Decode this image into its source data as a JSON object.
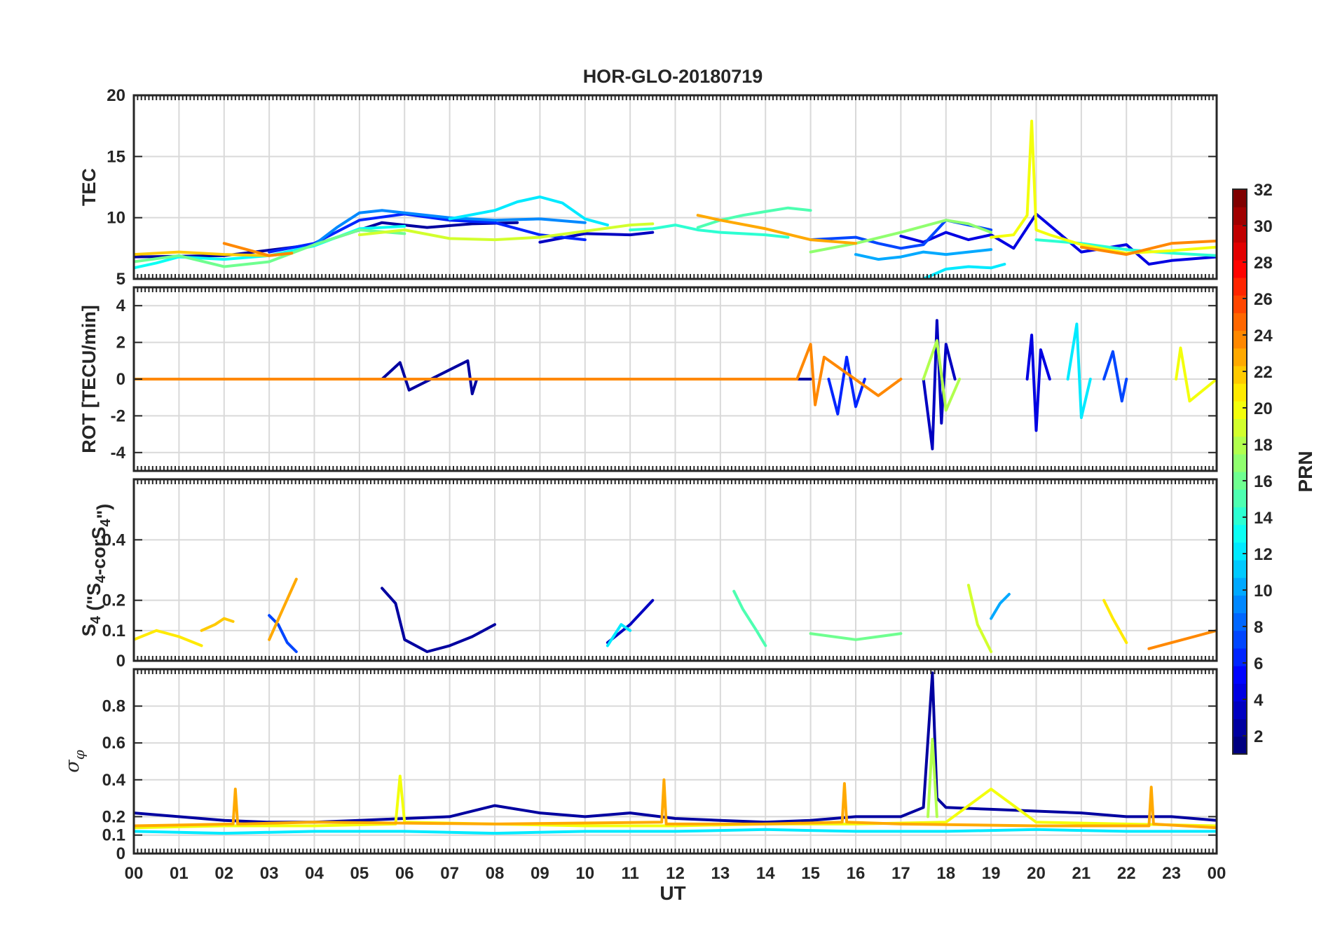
{
  "figure_title": "HOR-GLO-20180719",
  "chart_data": [
    {
      "type": "line",
      "panel": "tec",
      "title": "HOR-GLO-20180719",
      "ylabel": "TEC",
      "xlabel": "",
      "ylim": [
        5,
        20
      ],
      "yticks": [
        5,
        10,
        15,
        20
      ],
      "yticklabels": [
        "5",
        "10",
        "15",
        "20"
      ],
      "series": [
        {
          "name": "PRN 2",
          "prn": 2,
          "x": [
            0,
            2,
            4,
            5.5,
            6.5,
            7.5,
            8.5
          ],
          "values": [
            6.8,
            6.9,
            7.8,
            9.6,
            9.2,
            9.5,
            9.6
          ]
        },
        {
          "name": "PRN 3",
          "prn": 3,
          "x": [
            9,
            10,
            11,
            11.5
          ],
          "values": [
            8.0,
            8.7,
            8.6,
            8.8
          ]
        },
        {
          "name": "PRN 4",
          "prn": 4,
          "x": [
            17,
            17.5,
            18,
            18.5,
            19,
            19.5,
            20,
            21,
            22,
            22.5,
            23,
            24
          ],
          "values": [
            8.5,
            8.0,
            8.8,
            8.2,
            8.6,
            7.5,
            10.3,
            7.2,
            7.8,
            6.2,
            6.5,
            6.8
          ]
        },
        {
          "name": "PRN 6",
          "prn": 6,
          "x": [
            3,
            4,
            5,
            6,
            7,
            8,
            9,
            10
          ],
          "values": [
            7.2,
            7.9,
            9.8,
            10.3,
            9.8,
            9.6,
            8.6,
            8.2
          ]
        },
        {
          "name": "PRN 7",
          "prn": 7,
          "x": [
            15,
            16,
            16.5,
            17,
            17.5,
            18,
            19
          ],
          "values": [
            8.2,
            8.4,
            7.9,
            7.5,
            7.8,
            9.8,
            9.0
          ]
        },
        {
          "name": "PRN 9",
          "prn": 9,
          "x": [
            4,
            4.5,
            5,
            5.5,
            6,
            7,
            8,
            9,
            10
          ],
          "values": [
            7.8,
            9.2,
            10.4,
            10.6,
            10.4,
            10.0,
            9.8,
            9.9,
            9.6
          ]
        },
        {
          "name": "PRN 10",
          "prn": 10,
          "x": [
            16,
            16.5,
            17,
            17.5,
            18,
            19
          ],
          "values": [
            7.0,
            6.6,
            6.8,
            7.2,
            7.0,
            7.4
          ]
        },
        {
          "name": "PRN 12",
          "prn": 12,
          "x": [
            7,
            8,
            8.5,
            9,
            9.5,
            10,
            10.5
          ],
          "values": [
            9.9,
            10.6,
            11.3,
            11.7,
            11.2,
            9.9,
            9.4
          ]
        },
        {
          "name": "PRN 12b",
          "prn": 12,
          "x": [
            17.5,
            18,
            18.5,
            19,
            19.3
          ],
          "values": [
            5.0,
            5.8,
            6.0,
            5.9,
            6.2
          ]
        },
        {
          "name": "PRN 13",
          "prn": 13,
          "x": [
            0,
            0.5,
            1,
            2,
            3,
            4,
            5,
            6
          ],
          "values": [
            5.9,
            6.3,
            6.8,
            6.6,
            6.9,
            7.7,
            9.1,
            9.3
          ]
        },
        {
          "name": "PRN 14",
          "prn": 14,
          "x": [
            11,
            11.5,
            12,
            12.5,
            13,
            14,
            14.5
          ],
          "values": [
            9.0,
            9.1,
            9.4,
            9.0,
            8.8,
            8.6,
            8.4
          ]
        },
        {
          "name": "PRN 14b",
          "prn": 14,
          "x": [
            20,
            21,
            22,
            23,
            24
          ],
          "values": [
            8.2,
            7.9,
            7.4,
            7.1,
            6.9
          ]
        },
        {
          "name": "PRN 16",
          "prn": 16,
          "x": [
            0,
            1,
            2,
            3,
            4,
            5,
            6
          ],
          "values": [
            6.4,
            6.9,
            6.0,
            6.4,
            7.8,
            9.0,
            8.7
          ]
        },
        {
          "name": "PRN 15",
          "prn": 15,
          "x": [
            12.5,
            13,
            13.5,
            14,
            14.5,
            15
          ],
          "values": [
            9.2,
            9.8,
            10.2,
            10.5,
            10.8,
            10.6
          ]
        },
        {
          "name": "PRN 17",
          "prn": 17,
          "x": [
            15,
            16,
            17,
            18,
            18.5,
            19
          ],
          "values": [
            7.2,
            7.9,
            8.8,
            9.8,
            9.5,
            8.8
          ]
        },
        {
          "name": "PRN 19",
          "prn": 19,
          "x": [
            5,
            6,
            7,
            8,
            9,
            10,
            11,
            11.5
          ],
          "values": [
            8.6,
            9.0,
            8.3,
            8.2,
            8.4,
            8.9,
            9.4,
            9.5
          ]
        },
        {
          "name": "PRN 20",
          "prn": 20,
          "x": [
            19,
            19.5,
            19.8,
            19.9,
            20,
            20.3,
            21,
            22,
            23,
            24
          ],
          "values": [
            8.4,
            8.6,
            10.2,
            17.9,
            9.0,
            8.6,
            7.8,
            7.1,
            7.3,
            7.6
          ]
        },
        {
          "name": "PRN 22",
          "prn": 22,
          "x": [
            0,
            1,
            2,
            3,
            3.5
          ],
          "values": [
            7.0,
            7.2,
            7.0,
            6.9,
            7.1
          ]
        },
        {
          "name": "PRN 23",
          "prn": 23,
          "x": [
            12.5,
            13,
            14,
            15,
            16
          ],
          "values": [
            10.2,
            9.8,
            9.1,
            8.2,
            7.9
          ]
        },
        {
          "name": "PRN 24",
          "prn": 24,
          "x": [
            2,
            3,
            3.5
          ],
          "values": [
            7.9,
            6.9,
            7.1
          ]
        },
        {
          "name": "PRN 24b",
          "prn": 24,
          "x": [
            21,
            22,
            23,
            24
          ],
          "values": [
            7.6,
            7.0,
            7.9,
            8.1
          ]
        }
      ]
    },
    {
      "type": "line",
      "panel": "rot",
      "ylabel": "ROT [TECU/min]",
      "xlabel": "",
      "ylim": [
        -5,
        5
      ],
      "yticks": [
        -4,
        -2,
        0,
        2,
        4
      ],
      "yticklabels": [
        "-4",
        "-2",
        "0",
        "2",
        "4"
      ],
      "series": [
        {
          "name": "PRN 2",
          "prn": 2,
          "x": [
            0,
            5.5,
            5.9,
            6.1,
            7.4,
            7.5,
            7.6,
            15
          ],
          "values": [
            0,
            0,
            0.9,
            -0.6,
            1.0,
            -0.8,
            0,
            0
          ]
        },
        {
          "name": "PRN 3",
          "prn": 3,
          "x": [
            17.5,
            17.7,
            17.8,
            17.9,
            18.0,
            18.2
          ],
          "values": [
            0,
            -3.8,
            3.2,
            -2.4,
            1.9,
            0
          ]
        },
        {
          "name": "PRN 4",
          "prn": 4,
          "x": [
            19.8,
            19.9,
            20.0,
            20.1,
            20.3
          ],
          "values": [
            0,
            2.4,
            -2.8,
            1.6,
            0
          ]
        },
        {
          "name": "PRN 6",
          "prn": 6,
          "x": [
            15.4,
            15.6,
            15.8,
            16.0,
            16.2
          ],
          "values": [
            0,
            -1.9,
            1.2,
            -1.5,
            0
          ]
        },
        {
          "name": "PRN 7",
          "prn": 7,
          "x": [
            21.5,
            21.7,
            21.9,
            22.0
          ],
          "values": [
            0,
            1.5,
            -1.2,
            0
          ]
        },
        {
          "name": "PRN 12",
          "prn": 12,
          "x": [
            20.7,
            20.9,
            21.0,
            21.2
          ],
          "values": [
            0,
            3.0,
            -2.1,
            0
          ]
        },
        {
          "name": "PRN 18",
          "prn": 18,
          "x": [
            17.5,
            17.8,
            18.0,
            18.3
          ],
          "values": [
            0,
            2.1,
            -1.7,
            0
          ]
        },
        {
          "name": "PRN 24",
          "prn": 24,
          "x": [
            0,
            14.7,
            15.0,
            15.1,
            15.3,
            16.5,
            17
          ],
          "values": [
            0,
            0,
            1.9,
            -1.4,
            1.2,
            -0.9,
            0
          ]
        },
        {
          "name": "PRN 20",
          "prn": 20,
          "x": [
            23.1,
            23.2,
            23.4,
            24
          ],
          "values": [
            0,
            1.7,
            -1.2,
            0
          ]
        }
      ]
    },
    {
      "type": "line",
      "panel": "s4",
      "ylabel": "S4 (\"S4-corS4\")",
      "ylabel_parts": {
        "main": "S",
        "sub": "4",
        "paren_open": " (\"S",
        "sub2": "4",
        "mid": "-corS",
        "sub3": "4",
        "paren_close": "\")"
      },
      "xlabel": "",
      "ylim": [
        0,
        0.6
      ],
      "yticks": [
        0,
        0.1,
        0.2,
        0.4
      ],
      "yticklabels": [
        "0",
        "0.1",
        "0.2",
        "0.4"
      ],
      "series": [
        {
          "name": "PRN 2",
          "prn": 2,
          "x": [
            5.5,
            5.8,
            6.0,
            6.5,
            7.0,
            7.5,
            8.0
          ],
          "values": [
            0.24,
            0.19,
            0.07,
            0.03,
            0.05,
            0.08,
            0.12
          ]
        },
        {
          "name": "PRN 3",
          "prn": 3,
          "x": [
            10.5,
            11.0,
            11.5
          ],
          "values": [
            0.06,
            0.12,
            0.2
          ]
        },
        {
          "name": "PRN 7",
          "prn": 7,
          "x": [
            3.0,
            3.2,
            3.4,
            3.6
          ],
          "values": [
            0.15,
            0.12,
            0.06,
            0.03
          ]
        },
        {
          "name": "PRN 10",
          "prn": 10,
          "x": [
            19.0,
            19.2,
            19.4
          ],
          "values": [
            0.14,
            0.19,
            0.22
          ]
        },
        {
          "name": "PRN 12",
          "prn": 12,
          "x": [
            10.5,
            10.8,
            11.0
          ],
          "values": [
            0.05,
            0.12,
            0.1
          ]
        },
        {
          "name": "PRN 15",
          "prn": 15,
          "x": [
            13.3,
            13.5,
            13.8,
            14.0
          ],
          "values": [
            0.23,
            0.17,
            0.1,
            0.05
          ]
        },
        {
          "name": "PRN 16",
          "prn": 16,
          "x": [
            15.0,
            16.0,
            17.0
          ],
          "values": [
            0.09,
            0.07,
            0.09
          ]
        },
        {
          "name": "PRN 19",
          "prn": 19,
          "x": [
            18.5,
            18.7,
            19.0
          ],
          "values": [
            0.25,
            0.12,
            0.03
          ]
        },
        {
          "name": "PRN 21",
          "prn": 21,
          "x": [
            0,
            0.5,
            1.0,
            1.5
          ],
          "values": [
            0.07,
            0.1,
            0.08,
            0.05
          ]
        },
        {
          "name": "PRN 21b",
          "prn": 21,
          "x": [
            21.5,
            21.7,
            22.0
          ],
          "values": [
            0.2,
            0.14,
            0.06
          ]
        },
        {
          "name": "PRN 23",
          "prn": 23,
          "x": [
            3.0,
            3.3,
            3.6
          ],
          "values": [
            0.07,
            0.17,
            0.27
          ]
        },
        {
          "name": "PRN 22",
          "prn": 22,
          "x": [
            1.5,
            1.8,
            2.0,
            2.2
          ],
          "values": [
            0.1,
            0.12,
            0.14,
            0.13
          ]
        },
        {
          "name": "PRN 24",
          "prn": 24,
          "x": [
            22.5,
            23.0,
            23.5,
            24.0
          ],
          "values": [
            0.04,
            0.06,
            0.08,
            0.1
          ]
        }
      ]
    },
    {
      "type": "line",
      "panel": "sigma_phi",
      "ylabel": "σφ",
      "ylabel_parts": {
        "main": "σ",
        "sub": "φ"
      },
      "xlabel": "UT",
      "ylim": [
        0,
        1
      ],
      "yticks": [
        0,
        0.1,
        0.2,
        0.4,
        0.6,
        0.8
      ],
      "yticklabels": [
        "0",
        "0.1",
        "0.2",
        "0.4",
        "0.6",
        "0.8"
      ],
      "xticklabels": [
        "00",
        "01",
        "02",
        "03",
        "04",
        "05",
        "06",
        "07",
        "08",
        "09",
        "10",
        "11",
        "12",
        "13",
        "14",
        "15",
        "16",
        "17",
        "18",
        "19",
        "20",
        "21",
        "22",
        "23",
        "00"
      ],
      "series": [
        {
          "name": "PRN 2",
          "prn": 2,
          "x": [
            0,
            1,
            2,
            3,
            4,
            5,
            6,
            7,
            8,
            9,
            10,
            11,
            12,
            13,
            14,
            15,
            16,
            17,
            17.5,
            17.7,
            17.8,
            18,
            19,
            20,
            21,
            22,
            23,
            24
          ],
          "values": [
            0.22,
            0.2,
            0.18,
            0.17,
            0.17,
            0.18,
            0.19,
            0.2,
            0.26,
            0.22,
            0.2,
            0.22,
            0.19,
            0.18,
            0.17,
            0.18,
            0.2,
            0.2,
            0.25,
            0.98,
            0.3,
            0.25,
            0.24,
            0.23,
            0.22,
            0.2,
            0.2,
            0.18
          ]
        },
        {
          "name": "PRN 18",
          "prn": 18,
          "x": [
            17.6,
            17.7,
            17.8
          ],
          "values": [
            0.2,
            0.62,
            0.2
          ]
        },
        {
          "name": "PRN 12",
          "prn": 12,
          "x": [
            0,
            2,
            4,
            6,
            8,
            10,
            12,
            14,
            16,
            18,
            20,
            22,
            24
          ],
          "values": [
            0.12,
            0.11,
            0.12,
            0.12,
            0.11,
            0.12,
            0.12,
            0.13,
            0.12,
            0.12,
            0.13,
            0.12,
            0.12
          ]
        },
        {
          "name": "PRN 20",
          "prn": 20,
          "x": [
            0,
            2,
            4,
            5.8,
            5.9,
            6.0,
            8,
            10,
            12,
            14,
            16,
            18,
            19,
            20,
            22,
            24
          ],
          "values": [
            0.14,
            0.15,
            0.15,
            0.16,
            0.42,
            0.17,
            0.16,
            0.15,
            0.15,
            0.16,
            0.16,
            0.17,
            0.35,
            0.17,
            0.16,
            0.15
          ]
        },
        {
          "name": "PRN 23",
          "prn": 23,
          "x": [
            0,
            2.2,
            2.25,
            2.3,
            4,
            8,
            11.7,
            11.75,
            11.8,
            14,
            15.7,
            15.75,
            15.8,
            17,
            20,
            22.5,
            22.55,
            22.6,
            24
          ],
          "values": [
            0.15,
            0.16,
            0.35,
            0.16,
            0.17,
            0.16,
            0.17,
            0.4,
            0.16,
            0.16,
            0.17,
            0.38,
            0.17,
            0.16,
            0.15,
            0.15,
            0.36,
            0.16,
            0.14
          ]
        }
      ]
    }
  ],
  "colorbar": {
    "label": "PRN",
    "limits": [
      1,
      32
    ],
    "colormap": "jet",
    "ticks": [
      2,
      4,
      6,
      8,
      10,
      12,
      14,
      16,
      18,
      20,
      22,
      24,
      26,
      28,
      30,
      32
    ],
    "ticklabels": [
      "2",
      "4",
      "6",
      "8",
      "10",
      "12",
      "14",
      "16",
      "18",
      "20",
      "22",
      "24",
      "26",
      "28",
      "30",
      "32"
    ]
  },
  "style": {
    "axis_color": "#262626",
    "grid_color": "#d9d9d9",
    "background": "#ffffff"
  }
}
